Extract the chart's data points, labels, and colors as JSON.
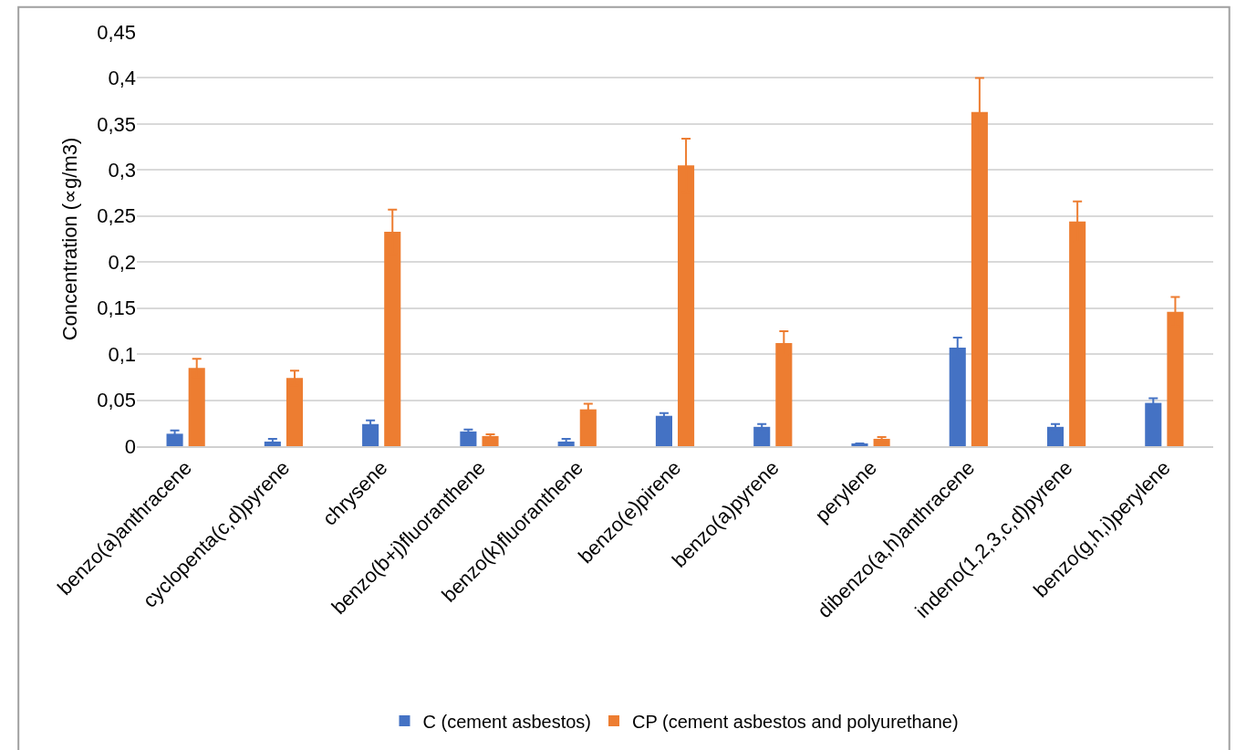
{
  "chart_data": {
    "type": "bar",
    "ylabel": "Concentration (∝g/m3)",
    "categories": [
      "benzo(a)anthracene",
      "cyclopenta(c,d)pyrene",
      "chrysene",
      "benzo(b+j)fluoranthene",
      "benzo(k)fluoranthene",
      "benzo(e)pirene",
      "benzo(a)pyrene",
      "perylene",
      "dibenzo(a,h)anthracene",
      "indeno(1,2,3,c,d)pyrene",
      "benzo(g,h,i)perylene"
    ],
    "series": [
      {
        "name": "C (cement asbestos)",
        "color": "#4472c4",
        "values": [
          0.0135,
          0.005,
          0.024,
          0.016,
          0.005,
          0.033,
          0.021,
          0.003,
          0.107,
          0.021,
          0.047
        ],
        "errors": [
          0.0035,
          0.003,
          0.004,
          0.002,
          0.003,
          0.003,
          0.003,
          null,
          0.011,
          0.003,
          0.005
        ]
      },
      {
        "name": "CP (cement asbestos and polyurethane)",
        "color": "#ed7d31",
        "values": [
          0.085,
          0.074,
          0.233,
          0.011,
          0.04,
          0.305,
          0.112,
          0.008,
          0.363,
          0.244,
          0.146
        ],
        "errors": [
          0.01,
          0.008,
          0.024,
          0.002,
          0.006,
          0.029,
          0.013,
          0.002,
          0.037,
          0.022,
          0.016
        ]
      }
    ],
    "ylim": [
      0,
      0.45
    ],
    "yticks": [
      {
        "value": 0,
        "label": "0"
      },
      {
        "value": 0.05,
        "label": "0,05"
      },
      {
        "value": 0.1,
        "label": "0,1"
      },
      {
        "value": 0.15,
        "label": "0,15"
      },
      {
        "value": 0.2,
        "label": "0,2"
      },
      {
        "value": 0.25,
        "label": "0,25"
      },
      {
        "value": 0.3,
        "label": "0,3"
      },
      {
        "value": 0.35,
        "label": "0,35"
      },
      {
        "value": 0.4,
        "label": "0,4"
      },
      {
        "value": 0.45,
        "label": "0,45"
      }
    ],
    "grid": "y",
    "legend": "bottom"
  }
}
